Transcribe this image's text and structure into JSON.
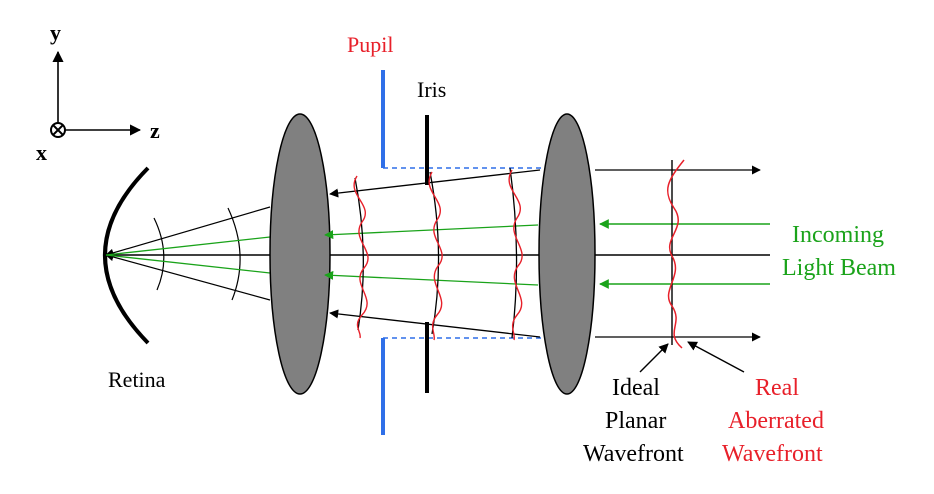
{
  "axes": {
    "y_label": "y",
    "z_label": "z",
    "x_label": "x"
  },
  "labels": {
    "pupil": "Pupil",
    "iris": "Iris",
    "retina": "Retina",
    "incoming_line1": "Incoming",
    "incoming_line2": "Light Beam",
    "ideal_line1": "Ideal",
    "ideal_line2": "Planar",
    "ideal_line3": "Wavefront",
    "real_line1": "Real",
    "real_line2": "Aberrated",
    "real_line3": "Wavefront"
  },
  "colors": {
    "pupil": "#e8202a",
    "pupil_stop": "#2f6fe8",
    "light_beam": "#1aa31a",
    "aberrated": "#e8202a",
    "lens_fill": "#808080"
  }
}
